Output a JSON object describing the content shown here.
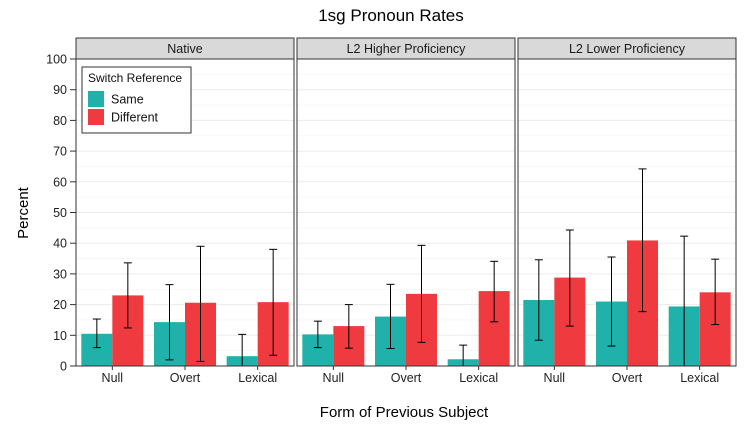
{
  "chart_data": {
    "type": "bar",
    "title": "1sg Pronoun Rates",
    "xlabel": "Form of Previous Subject",
    "ylabel": "Percent",
    "ylim": [
      0,
      100
    ],
    "yticks": [
      0,
      10,
      20,
      30,
      40,
      50,
      60,
      70,
      80,
      90,
      100
    ],
    "grid": true,
    "legend": {
      "title": "Switch Reference",
      "placement": "top-left",
      "entries": [
        "Same",
        "Different"
      ]
    },
    "colors": {
      "Same": "#20b2aa",
      "Different": "#ef3b3f"
    },
    "categories": [
      "Null",
      "Overt",
      "Lexical"
    ],
    "panels": [
      {
        "title": "Native",
        "series": [
          {
            "name": "Same",
            "values": [
              10.5,
              14.3,
              3.2
            ],
            "err_low": [
              6.0,
              2.0,
              0.0
            ],
            "err_high": [
              15.3,
              26.5,
              10.3
            ]
          },
          {
            "name": "Different",
            "values": [
              23.0,
              20.6,
              20.8
            ],
            "err_low": [
              12.4,
              1.5,
              3.5
            ],
            "err_high": [
              33.6,
              39.0,
              38.0
            ]
          }
        ]
      },
      {
        "title": "L2 Higher Proficiency",
        "series": [
          {
            "name": "Same",
            "values": [
              10.3,
              16.1,
              2.2
            ],
            "err_low": [
              6.0,
              5.7,
              0.0
            ],
            "err_high": [
              14.6,
              26.6,
              6.8
            ]
          },
          {
            "name": "Different",
            "values": [
              13.0,
              23.5,
              24.4
            ],
            "err_low": [
              5.8,
              7.7,
              14.4
            ],
            "err_high": [
              20.0,
              39.3,
              34.1
            ]
          }
        ]
      },
      {
        "title": "L2 Lower Proficiency",
        "series": [
          {
            "name": "Same",
            "values": [
              21.5,
              21.0,
              19.4
            ],
            "err_low": [
              8.4,
              6.5,
              0.0
            ],
            "err_high": [
              34.6,
              35.5,
              42.3
            ]
          },
          {
            "name": "Different",
            "values": [
              28.8,
              40.9,
              24.0
            ],
            "err_low": [
              13.0,
              17.7,
              13.5
            ],
            "err_high": [
              44.3,
              64.2,
              34.8
            ]
          }
        ]
      }
    ]
  }
}
